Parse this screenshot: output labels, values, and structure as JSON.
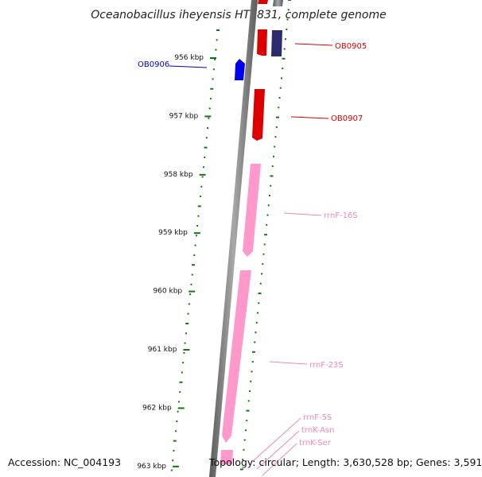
{
  "title": "Oceanobacillus iheyensis HTE831, complete genome",
  "ticks": [
    "956 kbp",
    "957 kbp",
    "958 kbp",
    "959 kbp",
    "960 kbp",
    "961 kbp",
    "962 kbp",
    "963 kbp"
  ],
  "genes": [
    {
      "id": "OB0905",
      "label": "OB0905",
      "color": "#dd0000",
      "strand": "forward"
    },
    {
      "id": "OB0906",
      "label": "OB0906",
      "color": "#0000cc",
      "strand": "reverse"
    },
    {
      "id": "OB0907",
      "label": "OB0907",
      "color": "#dd0000",
      "strand": "forward"
    },
    {
      "id": "rrnF-16S",
      "label": "rrnF-16S",
      "color": "#ee88bb",
      "strand": "forward"
    },
    {
      "id": "rrnF-23S",
      "label": "rrnF-23S",
      "color": "#ee88bb",
      "strand": "forward"
    },
    {
      "id": "rrnF-5S",
      "label": "rrnF-5S",
      "color": "#ee88bb",
      "strand": "forward"
    },
    {
      "id": "trnK-Asn",
      "label": "trnK-Asn",
      "color": "#ee88bb",
      "strand": "forward"
    },
    {
      "id": "trnK-Ser",
      "label": "trnK-Ser",
      "color": "#ee88bb",
      "strand": "forward"
    }
  ],
  "colors": {
    "forward_cds": "#dd0000",
    "reverse_cds": "#0000cc",
    "other_feature": "#2e2a6e",
    "rna": "#ee88bb",
    "backbone": "#808080",
    "gc_track": "#117711"
  },
  "footer": {
    "accession": "Accession: NC_004193",
    "stats": "Topology: circular; Length: 3,630,528 bp; Genes: 3,591"
  }
}
